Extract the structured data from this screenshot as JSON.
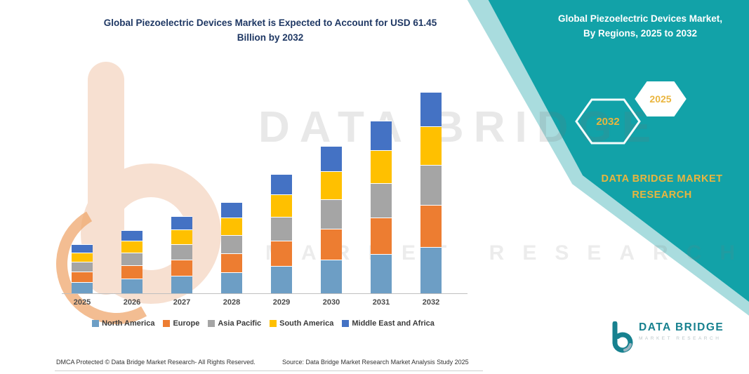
{
  "left": {
    "title_line1": "Global Piezoelectric Devices Market is Expected to Account for USD 61.45",
    "title_line2": "Billion by 2032",
    "footer_dmca": "DMCA Protected © Data Bridge Market Research-  All Rights Reserved.",
    "footer_source": "Source: Data Bridge Market Research  Market Analysis Study 2025"
  },
  "right": {
    "title_line1": "Global Piezoelectric Devices Market,",
    "title_line2": "By Regions, 2025 to 2032",
    "hexagon_back_label": "2032",
    "hexagon_front_label": "2025",
    "brand_line1": "DATA BRIDGE MARKET",
    "brand_line2": "RESEARCH",
    "colors": {
      "teal": "#12a2a8",
      "teal_light": "#a9dcde",
      "gold": "#eab53e"
    }
  },
  "watermark": {
    "line1": "DATA BRIDGE",
    "line2": "MARKET RESEARCH"
  },
  "logo": {
    "title": "DATA BRIDGE",
    "subtitle": "MARKET RESEARCH"
  },
  "chart_data": {
    "type": "bar",
    "stacked": true,
    "title": "Global Piezoelectric Devices Market is Expected to Account for USD 61.45 Billion by 2032",
    "unit": "USD Billion",
    "categories": [
      "2025",
      "2026",
      "2027",
      "2028",
      "2029",
      "2030",
      "2031",
      "2032"
    ],
    "series": [
      {
        "name": "North America",
        "color": "#6d9ec5",
        "values": [
          3.3,
          4.3,
          5.3,
          6.3,
          8.3,
          10.3,
          12.1,
          14.1
        ]
      },
      {
        "name": "Europe",
        "color": "#ed7d31",
        "values": [
          3.0,
          3.9,
          4.8,
          5.7,
          7.6,
          9.4,
          11.1,
          12.9
        ]
      },
      {
        "name": "Asia Pacific",
        "color": "#a5a5a5",
        "values": [
          2.9,
          3.7,
          4.6,
          5.4,
          7.2,
          8.9,
          10.5,
          12.3
        ]
      },
      {
        "name": "South America",
        "color": "#ffc000",
        "values": [
          2.7,
          3.5,
          4.4,
          5.2,
          6.8,
          8.5,
          10.0,
          11.7
        ]
      },
      {
        "name": "Middle East and Africa",
        "color": "#4472c4",
        "values": [
          2.5,
          3.1,
          3.9,
          4.6,
          6.1,
          7.6,
          9.0,
          10.5
        ]
      }
    ],
    "totals_estimated": [
      14.4,
      18.5,
      23.0,
      27.2,
      36.0,
      44.7,
      52.7,
      61.45
    ],
    "ylim": [
      0,
      70
    ],
    "y_axis_visible": false,
    "legend_position": "bottom"
  }
}
